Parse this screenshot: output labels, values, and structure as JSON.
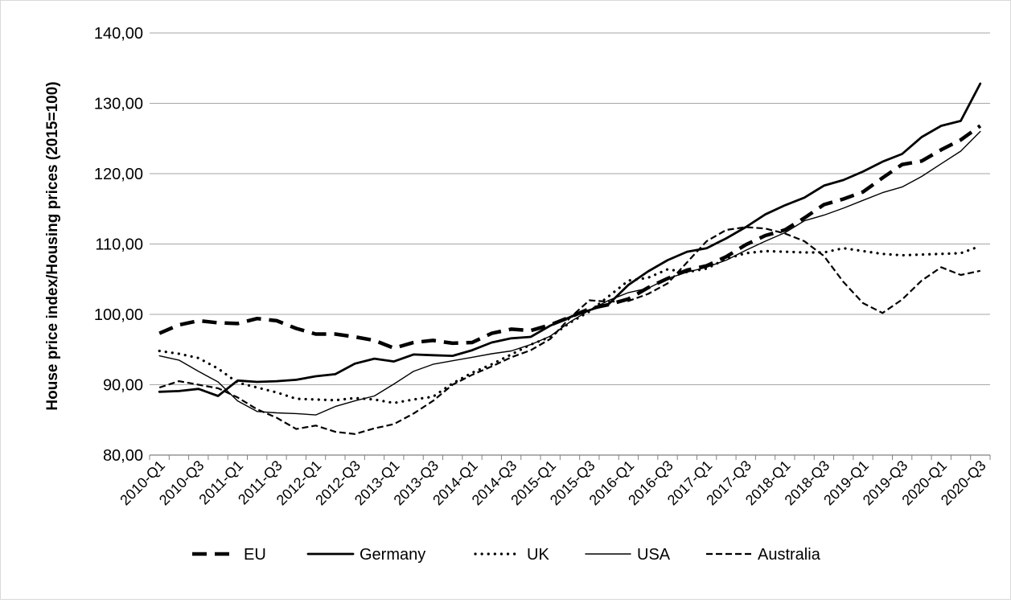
{
  "chart_data": {
    "type": "line",
    "ylabel": "House price index/Housing prices (2015=100)",
    "ylim": [
      80,
      140
    ],
    "yticks": [
      "80,00",
      "90,00",
      "100,00",
      "110,00",
      "120,00",
      "130,00",
      "140,00"
    ],
    "grid": "horizontal",
    "legend_position": "bottom",
    "x": [
      "2010-Q1",
      "2010-Q2",
      "2010-Q3",
      "2010-Q4",
      "2011-Q1",
      "2011-Q2",
      "2011-Q3",
      "2011-Q4",
      "2012-Q1",
      "2012-Q2",
      "2012-Q3",
      "2012-Q4",
      "2013-Q1",
      "2013-Q2",
      "2013-Q3",
      "2013-Q4",
      "2014-Q1",
      "2014-Q2",
      "2014-Q3",
      "2014-Q4",
      "2015-Q1",
      "2015-Q2",
      "2015-Q3",
      "2015-Q4",
      "2016-Q1",
      "2016-Q2",
      "2016-Q3",
      "2016-Q4",
      "2017-Q1",
      "2017-Q2",
      "2017-Q3",
      "2017-Q4",
      "2018-Q1",
      "2018-Q2",
      "2018-Q3",
      "2018-Q4",
      "2019-Q1",
      "2019-Q2",
      "2019-Q3",
      "2019-Q4",
      "2020-Q1",
      "2020-Q2",
      "2020-Q3"
    ],
    "xtick_labels": [
      "2010-Q1",
      "2010-Q3",
      "2011-Q1",
      "2011-Q3",
      "2012-Q1",
      "2012-Q3",
      "2013-Q1",
      "2013-Q3",
      "2014-Q1",
      "2014-Q3",
      "2015-Q1",
      "2015-Q3",
      "2016-Q1",
      "2016-Q3",
      "2017-Q1",
      "2017-Q3",
      "2018-Q1",
      "2018-Q3",
      "2019-Q1",
      "2019-Q3",
      "2020-Q1",
      "2020-Q3"
    ],
    "series": [
      {
        "name": "EU",
        "style": "long-dash",
        "values": [
          97.3,
          98.5,
          99.1,
          98.8,
          98.7,
          99.4,
          99.1,
          98.0,
          97.2,
          97.2,
          96.8,
          96.3,
          95.2,
          96.0,
          96.3,
          95.9,
          96.0,
          97.3,
          97.9,
          97.7,
          98.5,
          99.6,
          100.8,
          101.4,
          102.2,
          103.8,
          105.1,
          106.3,
          106.9,
          108.2,
          109.9,
          111.2,
          112.0,
          113.7,
          115.6,
          116.4,
          117.4,
          119.4,
          121.3,
          121.8,
          123.4,
          124.8,
          126.8
        ]
      },
      {
        "name": "Germany",
        "style": "thick-solid",
        "values": [
          89.0,
          89.1,
          89.4,
          88.4,
          90.6,
          90.4,
          90.5,
          90.7,
          91.2,
          91.5,
          93.0,
          93.7,
          93.3,
          94.3,
          94.2,
          94.1,
          94.9,
          96.0,
          96.6,
          96.8,
          98.4,
          99.6,
          100.6,
          101.5,
          104.2,
          106.1,
          107.7,
          108.9,
          109.4,
          110.8,
          112.4,
          114.2,
          115.5,
          116.6,
          118.3,
          119.1,
          120.3,
          121.7,
          122.8,
          125.2,
          126.8,
          127.5,
          132.8
        ]
      },
      {
        "name": "UK",
        "style": "dotted",
        "values": [
          94.8,
          94.4,
          93.8,
          92.3,
          90.3,
          89.6,
          88.9,
          88.0,
          87.9,
          87.8,
          88.1,
          87.9,
          87.4,
          87.9,
          88.3,
          90.2,
          91.7,
          92.9,
          94.3,
          95.7,
          96.8,
          98.8,
          100.4,
          102.6,
          104.8,
          105.2,
          106.4,
          106.0,
          106.5,
          107.9,
          108.7,
          109.0,
          108.9,
          108.8,
          108.8,
          109.4,
          109.0,
          108.6,
          108.4,
          108.5,
          108.6,
          108.7,
          109.7
        ]
      },
      {
        "name": "USA",
        "style": "thin-solid",
        "values": [
          94.1,
          93.5,
          91.9,
          90.4,
          87.7,
          86.2,
          86.0,
          85.9,
          85.7,
          86.9,
          87.7,
          88.4,
          90.1,
          91.9,
          92.9,
          93.4,
          93.9,
          94.4,
          94.8,
          95.7,
          96.9,
          98.9,
          100.6,
          102.0,
          103.1,
          103.7,
          105.1,
          106.0,
          106.7,
          107.7,
          109.1,
          110.4,
          111.6,
          113.3,
          114.1,
          115.1,
          116.2,
          117.3,
          118.1,
          119.6,
          121.4,
          123.2,
          126.0
        ]
      },
      {
        "name": "Australia",
        "style": "short-dash",
        "values": [
          89.6,
          90.5,
          90.0,
          89.5,
          88.2,
          86.5,
          85.3,
          83.7,
          84.2,
          83.3,
          83.0,
          83.8,
          84.4,
          85.9,
          87.7,
          90.0,
          91.4,
          92.6,
          93.9,
          94.9,
          96.5,
          99.5,
          102.0,
          101.8,
          101.9,
          102.9,
          104.4,
          107.4,
          110.4,
          112.0,
          112.4,
          112.2,
          111.5,
          110.4,
          108.3,
          104.6,
          101.6,
          100.2,
          102.1,
          104.8,
          106.7,
          105.6,
          106.2
        ]
      }
    ]
  }
}
